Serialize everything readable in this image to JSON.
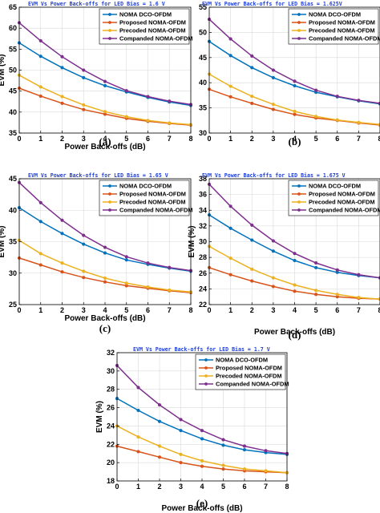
{
  "chart_data": [
    {
      "type": "line",
      "title": "EVM Vs Power Back-offs for LED Bias = 1.6 V",
      "caption": "(a)",
      "xlabel": "Power Back-offs (dB)",
      "ylabel": "EVM (%)",
      "x": [
        0,
        1,
        2,
        3,
        4,
        5,
        6,
        7,
        8
      ],
      "xlim": [
        0,
        8
      ],
      "ylim": [
        35,
        65
      ],
      "yticks": [
        35,
        40,
        45,
        50,
        55,
        60,
        65
      ],
      "grid": true,
      "legend_position": "top-right",
      "series": [
        {
          "name": "NOMA DCO-OFDM",
          "color": "#0072BD",
          "values": [
            56.5,
            53.3,
            50.6,
            48.2,
            46.3,
            44.8,
            43.5,
            42.4,
            41.6
          ]
        },
        {
          "name": "Proposed NOMA-OFDM",
          "color": "#D95319",
          "values": [
            45.7,
            43.8,
            42.1,
            40.6,
            39.5,
            38.5,
            37.8,
            37.3,
            36.9
          ]
        },
        {
          "name": "Precoded NOMA-OFDM",
          "color": "#EDB120",
          "values": [
            48.8,
            46.0,
            43.7,
            41.7,
            40.1,
            38.9,
            38.0,
            37.4,
            37.0
          ]
        },
        {
          "name": "Companded NOMA-OFDM",
          "color": "#7E2F8E",
          "values": [
            61.3,
            57.0,
            53.2,
            50.0,
            47.3,
            45.1,
            43.7,
            42.6,
            41.8
          ]
        }
      ]
    },
    {
      "type": "line",
      "title": "EVM Vs Power Back-offs for LED Bias = 1.625V",
      "caption": "(b)",
      "xlabel": "",
      "ylabel": "",
      "x": [
        0,
        1,
        2,
        3,
        4,
        5,
        6,
        7,
        8
      ],
      "xlim": [
        0,
        8
      ],
      "ylim": [
        30,
        55
      ],
      "yticks": [
        30,
        35,
        40,
        45,
        50,
        55
      ],
      "grid": true,
      "legend_position": "top-right",
      "series": [
        {
          "name": "NOMA DCO-OFDM",
          "color": "#0072BD",
          "values": [
            48.2,
            45.4,
            43.0,
            41.0,
            39.4,
            38.1,
            37.2,
            36.4,
            35.8
          ]
        },
        {
          "name": "Proposed NOMA-OFDM",
          "color": "#D95319",
          "values": [
            38.7,
            37.2,
            35.9,
            34.7,
            33.7,
            33.0,
            32.5,
            32.0,
            31.6
          ]
        },
        {
          "name": "Precoded NOMA-OFDM",
          "color": "#EDB120",
          "values": [
            41.7,
            39.3,
            37.3,
            35.7,
            34.3,
            33.3,
            32.6,
            32.1,
            31.7
          ]
        },
        {
          "name": "Companded NOMA-OFDM",
          "color": "#7E2F8E",
          "values": [
            52.6,
            48.7,
            45.3,
            42.5,
            40.3,
            38.5,
            37.3,
            36.5,
            35.9
          ]
        }
      ]
    },
    {
      "type": "line",
      "title": "EVM Vs Power Back-offs for LED Bias = 1.65 V",
      "caption": "(c)",
      "xlabel": "Power Back-offs (dB)",
      "ylabel": "EVM (%)",
      "x": [
        0,
        1,
        2,
        3,
        4,
        5,
        6,
        7,
        8
      ],
      "xlim": [
        0,
        8
      ],
      "ylim": [
        25,
        45
      ],
      "yticks": [
        25,
        30,
        35,
        40,
        45
      ],
      "grid": true,
      "legend_position": "top-right",
      "series": [
        {
          "name": "NOMA DCO-OFDM",
          "color": "#0072BD",
          "values": [
            40.4,
            38.2,
            36.3,
            34.6,
            33.2,
            32.1,
            31.4,
            30.8,
            30.3
          ]
        },
        {
          "name": "Proposed NOMA-OFDM",
          "color": "#D95319",
          "values": [
            32.4,
            31.3,
            30.2,
            29.3,
            28.6,
            28.0,
            27.6,
            27.2,
            26.9
          ]
        },
        {
          "name": "Precoded NOMA-OFDM",
          "color": "#EDB120",
          "values": [
            35.2,
            33.1,
            31.6,
            30.3,
            29.2,
            28.4,
            27.8,
            27.3,
            27.0
          ]
        },
        {
          "name": "Companded NOMA-OFDM",
          "color": "#7E2F8E",
          "values": [
            44.4,
            41.2,
            38.4,
            36.0,
            34.1,
            32.6,
            31.6,
            30.9,
            30.4
          ]
        }
      ]
    },
    {
      "type": "line",
      "title": "EVM Vs Power Back-offs for LED Bias = 1.675 V",
      "caption": "(d)",
      "xlabel": "Power Back-offs (dB)",
      "ylabel": "EVM (%)",
      "x": [
        0,
        1,
        2,
        3,
        4,
        5,
        6,
        7,
        8
      ],
      "xlim": [
        0,
        8
      ],
      "ylim": [
        22,
        38
      ],
      "yticks": [
        22,
        24,
        26,
        28,
        30,
        32,
        34,
        36,
        38
      ],
      "grid": true,
      "legend_position": "top-right",
      "series": [
        {
          "name": "NOMA DCO-OFDM",
          "color": "#0072BD",
          "values": [
            33.4,
            31.7,
            30.2,
            28.8,
            27.6,
            26.7,
            26.1,
            25.7,
            25.4
          ]
        },
        {
          "name": "Proposed NOMA-OFDM",
          "color": "#D95319",
          "values": [
            26.7,
            25.8,
            25.0,
            24.3,
            23.7,
            23.3,
            23.0,
            22.8,
            22.7
          ]
        },
        {
          "name": "Precoded NOMA-OFDM",
          "color": "#EDB120",
          "values": [
            29.4,
            27.9,
            26.5,
            25.4,
            24.5,
            23.8,
            23.3,
            22.9,
            22.7
          ]
        },
        {
          "name": "Companded NOMA-OFDM",
          "color": "#7E2F8E",
          "values": [
            37.3,
            34.5,
            32.1,
            30.1,
            28.5,
            27.3,
            26.4,
            25.8,
            25.4
          ]
        }
      ]
    },
    {
      "type": "line",
      "title": "EVM Vs Power Back-offs for LED Bias = 1.7 V",
      "caption": "(e)",
      "xlabel": "Power Back-offs (dB)",
      "ylabel": "EVM (%)",
      "x": [
        0,
        1,
        2,
        3,
        4,
        5,
        6,
        7,
        8
      ],
      "xlim": [
        0,
        8
      ],
      "ylim": [
        18,
        32
      ],
      "yticks": [
        18,
        20,
        22,
        24,
        26,
        28,
        30,
        32
      ],
      "grid": true,
      "legend_position": "top-right",
      "series": [
        {
          "name": "NOMA DCO-OFDM",
          "color": "#0072BD",
          "values": [
            27.0,
            25.7,
            24.5,
            23.5,
            22.6,
            21.9,
            21.4,
            21.1,
            20.9
          ]
        },
        {
          "name": "Proposed NOMA-OFDM",
          "color": "#D95319",
          "values": [
            21.8,
            21.2,
            20.6,
            20.0,
            19.6,
            19.3,
            19.1,
            19.0,
            18.9
          ]
        },
        {
          "name": "Precoded NOMA-OFDM",
          "color": "#EDB120",
          "values": [
            24.0,
            22.8,
            21.8,
            20.9,
            20.2,
            19.7,
            19.3,
            19.1,
            18.9
          ]
        },
        {
          "name": "Companded NOMA-OFDM",
          "color": "#7E2F8E",
          "values": [
            30.6,
            28.2,
            26.3,
            24.7,
            23.5,
            22.5,
            21.8,
            21.3,
            21.0
          ]
        }
      ]
    }
  ]
}
